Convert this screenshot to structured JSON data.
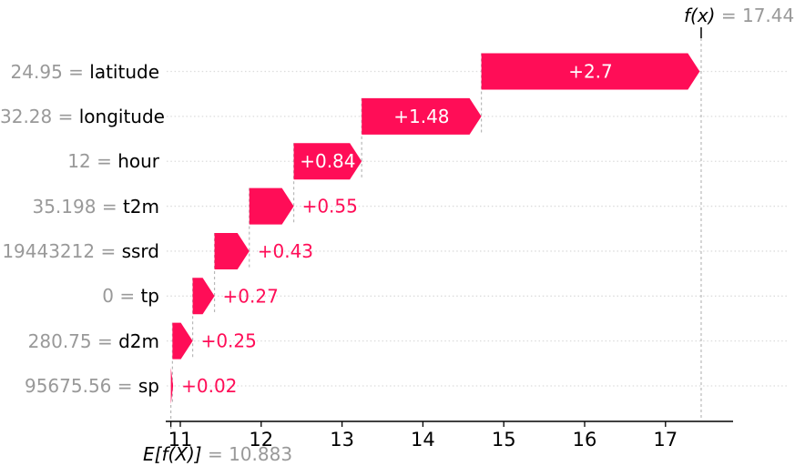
{
  "accent_color": "#ff0d57",
  "muted_text_color": "#999999",
  "eq": "=",
  "chart_data": {
    "type": "waterfall",
    "description": "SHAP waterfall plot of feature contributions",
    "base_label": "E[f(X)]",
    "base_value": 10.883,
    "base_value_text": "10.883",
    "output_label": "f(x)",
    "output_value": 17.441,
    "output_value_text": "17.441",
    "x_ticks": [
      11,
      12,
      13,
      14,
      15,
      16,
      17
    ],
    "xlim": [
      10.8,
      17.85
    ],
    "grid": "horizontal-dotted",
    "legend": "none",
    "rows": [
      {
        "feature": "latitude",
        "value_text": "24.95",
        "shap": 2.7,
        "label": "+2.7",
        "label_inside": true
      },
      {
        "feature": "longitude",
        "value_text": "32.28",
        "shap": 1.48,
        "label": "+1.48",
        "label_inside": true
      },
      {
        "feature": "hour",
        "value_text": "12",
        "shap": 0.84,
        "label": "+0.84",
        "label_inside": true
      },
      {
        "feature": "t2m",
        "value_text": "35.198",
        "shap": 0.55,
        "label": "+0.55",
        "label_inside": false
      },
      {
        "feature": "ssrd",
        "value_text": "19443212",
        "shap": 0.43,
        "label": "+0.43",
        "label_inside": false
      },
      {
        "feature": "tp",
        "value_text": "0",
        "shap": 0.27,
        "label": "+0.27",
        "label_inside": false
      },
      {
        "feature": "d2m",
        "value_text": "280.75",
        "shap": 0.25,
        "label": "+0.25",
        "label_inside": false
      },
      {
        "feature": "sp",
        "value_text": "95675.56",
        "shap": 0.02,
        "label": "+0.02",
        "label_inside": false
      }
    ]
  }
}
